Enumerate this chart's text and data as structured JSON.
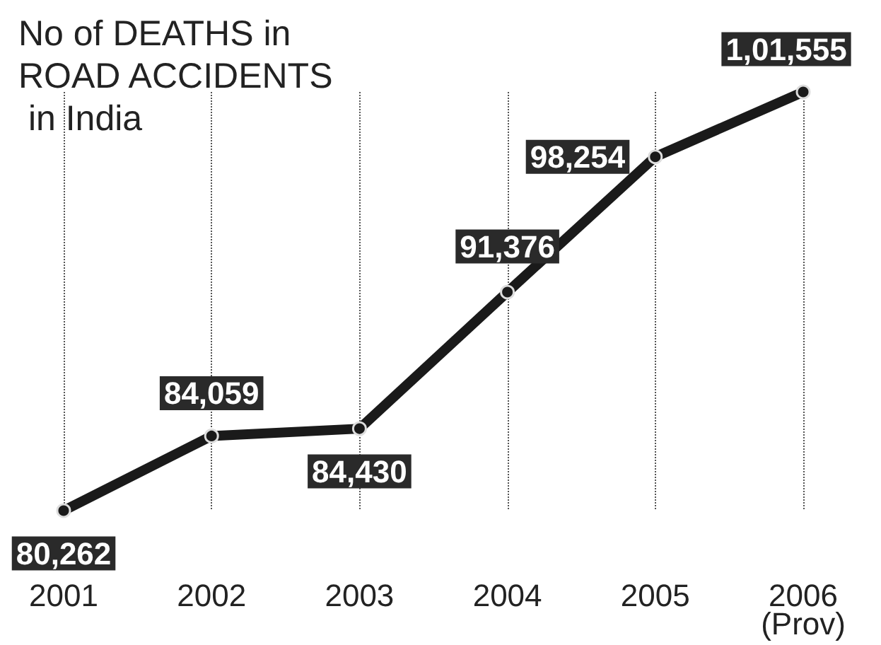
{
  "chart_data": {
    "type": "line",
    "title": "No of DEATHS in ROAD ACCIDENTS in India",
    "categories": [
      "2001",
      "2002",
      "2003",
      "2004",
      "2005",
      "2006\n(Prov)"
    ],
    "series": [
      {
        "color": "#1a1a1a",
        "values": [
          80262,
          84059,
          84430,
          91376,
          98254,
          101555
        ],
        "value_labels": [
          "80,262",
          "84,059",
          "84,430",
          "91,376",
          "98,254",
          "1,01,555"
        ]
      }
    ],
    "marker": "circle",
    "line_style": "solid",
    "grid": "x"
  }
}
